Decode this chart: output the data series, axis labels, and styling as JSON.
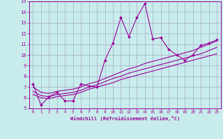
{
  "xlabel": "Windchill (Refroidissement éolien,°C)",
  "bg_color": "#c8ecec",
  "line_color": "#990099",
  "grid_color": "#aaaacc",
  "x_data": [
    0,
    1,
    2,
    3,
    4,
    5,
    6,
    7,
    8,
    9,
    10,
    11,
    12,
    13,
    14,
    15,
    16,
    17,
    18,
    19,
    20,
    21,
    22,
    23
  ],
  "y_main": [
    7.3,
    5.3,
    6.1,
    6.5,
    5.7,
    5.7,
    7.3,
    7.1,
    7.0,
    9.5,
    11.1,
    13.5,
    11.7,
    13.5,
    14.8,
    11.5,
    11.6,
    10.5,
    10.0,
    9.5,
    10.0,
    10.9,
    11.1,
    11.4
  ],
  "y_line1": [
    6.3,
    6.0,
    5.9,
    6.1,
    6.2,
    6.3,
    6.5,
    6.8,
    7.0,
    7.2,
    7.4,
    7.7,
    7.9,
    8.1,
    8.3,
    8.5,
    8.7,
    8.9,
    9.1,
    9.3,
    9.5,
    9.7,
    9.9,
    10.1
  ],
  "y_line2": [
    6.6,
    6.2,
    6.1,
    6.3,
    6.4,
    6.5,
    6.7,
    7.0,
    7.2,
    7.5,
    7.8,
    8.0,
    8.3,
    8.5,
    8.7,
    8.9,
    9.1,
    9.3,
    9.5,
    9.7,
    9.9,
    10.1,
    10.4,
    10.7
  ],
  "y_line3": [
    7.0,
    6.5,
    6.4,
    6.6,
    6.7,
    6.8,
    7.0,
    7.3,
    7.5,
    7.8,
    8.1,
    8.4,
    8.7,
    8.9,
    9.2,
    9.4,
    9.6,
    9.8,
    10.0,
    10.2,
    10.4,
    10.7,
    11.0,
    11.3
  ],
  "ylim": [
    5,
    15
  ],
  "xlim_min": -0.5,
  "xlim_max": 23.5,
  "yticks": [
    5,
    6,
    7,
    8,
    9,
    10,
    11,
    12,
    13,
    14,
    15
  ],
  "xticks": [
    0,
    1,
    2,
    3,
    4,
    5,
    6,
    7,
    8,
    9,
    10,
    11,
    12,
    13,
    14,
    15,
    16,
    17,
    18,
    19,
    20,
    21,
    22,
    23
  ]
}
